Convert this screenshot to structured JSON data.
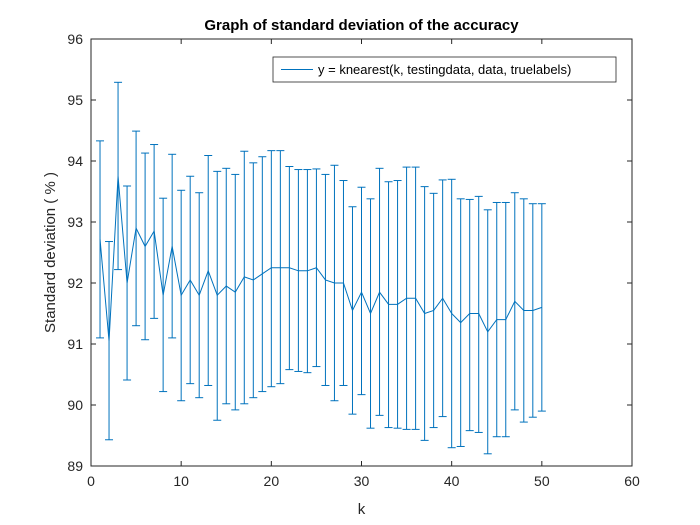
{
  "chart_data": {
    "type": "line",
    "title": "Graph of standard deviation of the accuracy",
    "xlabel": "k",
    "ylabel": "Standard deviation ( % )",
    "xlim": [
      0,
      60
    ],
    "ylim": [
      89,
      96
    ],
    "xticks": [
      0,
      10,
      20,
      30,
      40,
      50,
      60
    ],
    "yticks": [
      89,
      90,
      91,
      92,
      93,
      94,
      95,
      96
    ],
    "grid": false,
    "legend_position": "top-right",
    "series": [
      {
        "name": "y = knearest(k, testingdata, data, truelabels)",
        "color": "#0072BD",
        "error_bars": true,
        "x": [
          1,
          2,
          3,
          4,
          5,
          6,
          7,
          8,
          9,
          10,
          11,
          12,
          13,
          14,
          15,
          16,
          17,
          18,
          19,
          20,
          21,
          22,
          23,
          24,
          25,
          26,
          27,
          28,
          29,
          30,
          31,
          32,
          33,
          34,
          35,
          36,
          37,
          38,
          39,
          40,
          41,
          42,
          43,
          44,
          45,
          46,
          47,
          48,
          49,
          50
        ],
        "y": [
          92.72,
          91.05,
          93.75,
          92.0,
          92.9,
          92.6,
          92.85,
          91.8,
          92.6,
          91.8,
          92.05,
          91.8,
          92.2,
          91.8,
          91.95,
          91.85,
          92.1,
          92.05,
          92.15,
          92.25,
          92.25,
          92.25,
          92.2,
          92.2,
          92.25,
          92.05,
          92.0,
          92.0,
          91.55,
          91.85,
          91.5,
          91.85,
          91.65,
          91.65,
          91.75,
          91.75,
          91.5,
          91.55,
          91.75,
          91.5,
          91.35,
          91.5,
          91.5,
          91.2,
          91.4,
          91.4,
          91.7,
          91.55,
          91.55,
          91.6
        ],
        "lower": [
          91.1,
          89.43,
          92.22,
          90.41,
          91.3,
          91.07,
          91.42,
          90.22,
          91.1,
          90.07,
          90.35,
          90.12,
          90.32,
          89.75,
          90.02,
          89.92,
          90.02,
          90.12,
          90.22,
          90.3,
          90.35,
          90.58,
          90.55,
          90.53,
          90.63,
          90.32,
          90.07,
          90.32,
          89.85,
          90.17,
          89.62,
          89.83,
          89.63,
          89.62,
          89.6,
          89.6,
          89.42,
          89.63,
          89.81,
          89.3,
          89.32,
          89.58,
          89.55,
          89.2,
          89.48,
          89.48,
          89.92,
          89.72,
          89.8,
          89.9
        ],
        "upper": [
          94.33,
          92.68,
          95.29,
          93.59,
          94.49,
          94.13,
          94.27,
          93.39,
          94.11,
          93.52,
          93.75,
          93.48,
          94.09,
          93.83,
          93.88,
          93.78,
          94.16,
          93.97,
          94.07,
          94.17,
          94.17,
          93.91,
          93.86,
          93.86,
          93.87,
          93.78,
          93.93,
          93.68,
          93.25,
          93.57,
          93.38,
          93.88,
          93.66,
          93.68,
          93.9,
          93.9,
          93.58,
          93.47,
          93.69,
          93.7,
          93.38,
          93.37,
          93.42,
          93.2,
          93.32,
          93.32,
          93.48,
          93.38,
          93.3,
          93.3
        ]
      }
    ]
  }
}
